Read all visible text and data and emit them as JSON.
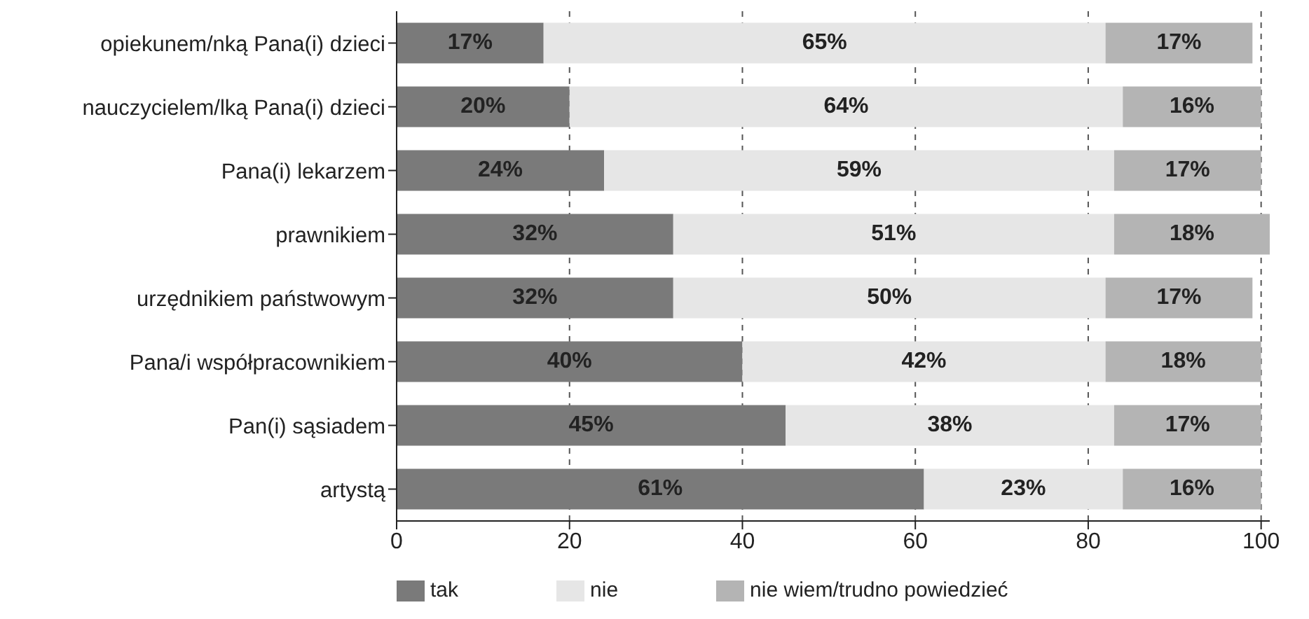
{
  "chart_data": {
    "type": "bar",
    "orientation": "horizontal",
    "stacked": true,
    "categories": [
      "opiekunem/nką Pana(i) dzieci",
      "nauczycielem/lką Pana(i) dzieci",
      "Pana(i) lekarzem",
      "prawnikiem",
      "urzędnikiem państwowym",
      "Pana/i współpracownikiem",
      "Pan(i) sąsiadem",
      "artystą"
    ],
    "series": [
      {
        "name": "tak",
        "color": "#7a7a7a",
        "values": [
          17,
          20,
          24,
          32,
          32,
          40,
          45,
          61
        ],
        "value_labels": [
          "17%",
          "20%",
          "24%",
          "32%",
          "32%",
          "40%",
          "45%",
          "61%"
        ]
      },
      {
        "name": "nie",
        "color": "#e6e6e6",
        "values": [
          65,
          64,
          59,
          51,
          50,
          42,
          38,
          23
        ],
        "value_labels": [
          "65%",
          "64%",
          "59%",
          "51%",
          "50%",
          "42%",
          "38%",
          "23%"
        ]
      },
      {
        "name": "nie wiem/trudno powiedzieć",
        "color": "#b4b4b4",
        "values": [
          17,
          16,
          17,
          18,
          17,
          18,
          17,
          16
        ],
        "value_labels": [
          "17%",
          "16%",
          "17%",
          "18%",
          "17%",
          "18%",
          "17%",
          "16%"
        ]
      }
    ],
    "xlim": [
      0,
      101
    ],
    "xticks": [
      0,
      20,
      40,
      60,
      80,
      100
    ],
    "grid": "x",
    "legend": "bottom"
  }
}
